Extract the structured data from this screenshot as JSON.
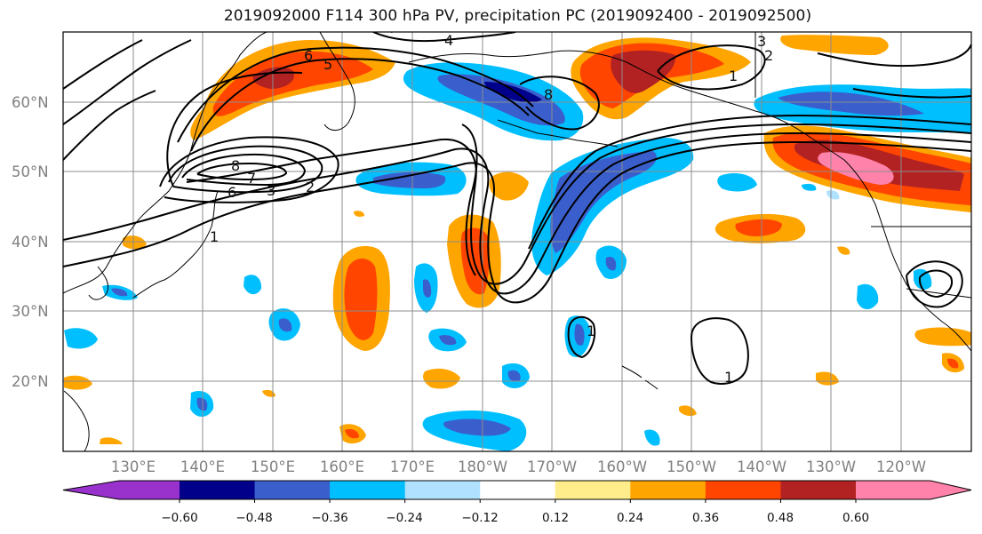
{
  "title": "2019092000 F114 300 hPa PV, precipitation PC (2019092400 - 2019092500)",
  "map": {
    "lat_labels": [
      "60°N",
      "50°N",
      "40°N",
      "30°N",
      "20°N"
    ],
    "lon_labels": [
      "130°E",
      "140°E",
      "150°E",
      "160°E",
      "170°E",
      "180°W",
      "170°W",
      "160°W",
      "150°W",
      "140°W",
      "130°W",
      "120°W"
    ],
    "contour_labels": [
      "6",
      "5",
      "4",
      "3",
      "2",
      "1",
      "8",
      "8",
      "7",
      "6",
      "3",
      "2",
      "1",
      "1",
      "1"
    ]
  },
  "colorbar": {
    "ticks": [
      "−0.60",
      "−0.48",
      "−0.36",
      "−0.24",
      "−0.12",
      "0.12",
      "0.24",
      "0.36",
      "0.48",
      "0.60"
    ],
    "colors": [
      "#9932cc",
      "#00008b",
      "#3a5fcd",
      "#00bfff",
      "#b0e2ff",
      "#ffffff",
      "#ffec8b",
      "#ffa500",
      "#ff4500",
      "#b22222",
      "#ff82ab"
    ]
  },
  "colors": {
    "gridline": "#8c8c8c",
    "contour": "#000000",
    "tick_text": "#808080"
  }
}
